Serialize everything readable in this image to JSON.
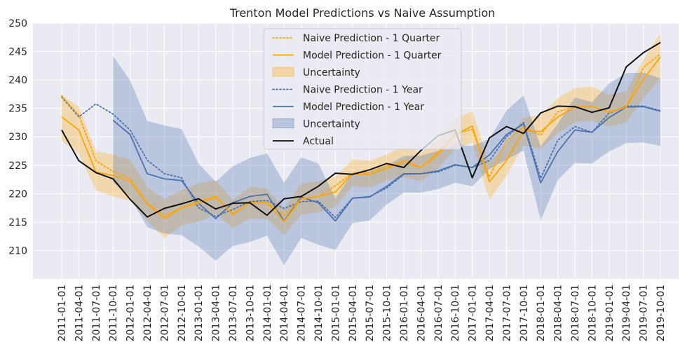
{
  "chart_data": {
    "type": "line",
    "title": "Trenton Model Predictions vs Naive Assumption",
    "xlabel": "",
    "ylabel": "",
    "ylim": [
      205,
      250
    ],
    "yticks": [
      210,
      215,
      220,
      225,
      230,
      235,
      240,
      245,
      250
    ],
    "grid": true,
    "legend_position": "top-center",
    "categories": [
      "2011-01-01",
      "2011-04-01",
      "2011-07-01",
      "2011-10-01",
      "2012-01-01",
      "2012-04-01",
      "2012-07-01",
      "2012-10-01",
      "2013-01-01",
      "2013-04-01",
      "2013-07-01",
      "2013-10-01",
      "2014-01-01",
      "2014-04-01",
      "2014-07-01",
      "2014-10-01",
      "2015-01-01",
      "2015-04-01",
      "2015-07-01",
      "2015-10-01",
      "2016-01-01",
      "2016-04-01",
      "2016-07-01",
      "2016-10-01",
      "2017-01-01",
      "2017-04-01",
      "2017-07-01",
      "2017-10-01",
      "2018-01-01",
      "2018-04-01",
      "2018-07-01",
      "2018-10-01",
      "2019-01-01",
      "2019-04-01",
      "2019-07-01",
      "2019-10-01"
    ],
    "series": [
      {
        "name": "Naive Prediction - 1 Quarter",
        "kind": "line",
        "style": "dotted",
        "color": "#FFA500",
        "values": [
          237.2,
          233.8,
          225.8,
          223.9,
          222.7,
          218.3,
          216.1,
          217.5,
          218.3,
          219.3,
          216.5,
          218.4,
          218.5,
          216.2,
          219.1,
          219.5,
          221.4,
          223.6,
          223.8,
          224.9,
          225.3,
          224.6,
          227.3,
          230.5,
          231.3,
          222.9,
          229.3,
          231.7,
          230.3,
          234.4,
          235.4,
          235.3,
          234.4,
          235.1,
          242.2,
          244.6
        ]
      },
      {
        "name": "Model Prediction - 1 Quarter",
        "kind": "line",
        "style": "solid",
        "color": "#FFA500",
        "values": [
          233.5,
          231.2,
          223.8,
          223.2,
          222.2,
          218.2,
          215.6,
          217.5,
          218.6,
          219.5,
          216.3,
          218.4,
          218.4,
          215.1,
          219.1,
          219.5,
          220.3,
          223.5,
          223.4,
          224.4,
          225.8,
          224.6,
          226.9,
          230.4,
          231.9,
          222.1,
          225.8,
          231.1,
          230.9,
          233.5,
          235.2,
          235.3,
          234.3,
          235.3,
          240.1,
          244.1
        ]
      },
      {
        "name": "Uncertainty",
        "kind": "band",
        "color": "#FFA500",
        "lower": [
          229.3,
          227.0,
          220.6,
          219.5,
          218.8,
          215.2,
          212.2,
          214.4,
          215.1,
          216.4,
          213.9,
          215.6,
          215.6,
          212.7,
          216.3,
          216.7,
          217.7,
          221.3,
          221.1,
          222.3,
          222.9,
          222.2,
          224.4,
          227.9,
          229.0,
          218.9,
          223.1,
          228.5,
          227.9,
          230.6,
          232.6,
          232.8,
          231.8,
          232.5,
          236.8,
          240.3
        ],
        "upper": [
          237.3,
          235.3,
          227.4,
          226.9,
          226.0,
          221.2,
          219.0,
          220.6,
          221.8,
          222.4,
          218.9,
          221.2,
          220.9,
          217.3,
          221.8,
          222.2,
          223.0,
          226.0,
          225.8,
          226.9,
          228.4,
          227.2,
          229.4,
          233.2,
          234.5,
          225.4,
          228.8,
          233.4,
          233.8,
          236.8,
          238.6,
          238.8,
          237.4,
          238.0,
          243.6,
          248.2
        ]
      },
      {
        "name": "Naive Prediction - 1 Year",
        "kind": "line",
        "style": "dotted",
        "color": "#4C72B0",
        "values": [
          237.0,
          233.5,
          235.8,
          234.0,
          231.2,
          225.9,
          223.5,
          222.8,
          217.5,
          216.0,
          217.2,
          218.6,
          218.8,
          217.4,
          218.6,
          218.7,
          215.8,
          219.2,
          219.5,
          221.0,
          223.4,
          223.5,
          223.8,
          225.0,
          224.6,
          225.8,
          230.0,
          232.5,
          222.7,
          229.4,
          231.8,
          230.8,
          234.2,
          235.4,
          235.4,
          234.6
        ]
      },
      {
        "name": "Model Prediction - 1 Year",
        "kind": "line",
        "style": "solid",
        "color": "#4C72B0",
        "values": [
          null,
          null,
          null,
          232.9,
          230.4,
          223.5,
          222.6,
          222.3,
          218.3,
          215.6,
          218.4,
          219.5,
          219.9,
          215.2,
          219.4,
          218.4,
          215.2,
          219.2,
          219.4,
          221.3,
          223.5,
          223.5,
          224.0,
          225.1,
          224.6,
          226.8,
          230.4,
          232.3,
          221.9,
          227.4,
          231.2,
          230.8,
          233.4,
          235.2,
          235.3,
          234.5
        ]
      },
      {
        "name": "Uncertainty",
        "kind": "band",
        "color": "#4C72B0",
        "lower": [
          null,
          null,
          null,
          222.0,
          219.5,
          214.1,
          213.0,
          212.7,
          210.7,
          208.2,
          210.8,
          211.5,
          212.6,
          207.4,
          212.2,
          211.0,
          210.1,
          214.8,
          215.3,
          218.1,
          220.2,
          220.2,
          220.8,
          221.9,
          221.3,
          224.3,
          226.0,
          227.6,
          215.3,
          222.4,
          225.4,
          225.3,
          227.4,
          228.9,
          229.0,
          228.4
        ],
        "upper": [
          null,
          null,
          null,
          244.2,
          239.9,
          232.8,
          232.0,
          231.4,
          225.3,
          222.1,
          224.8,
          226.3,
          227.1,
          221.9,
          226.4,
          225.3,
          219.2,
          223.6,
          223.9,
          225.0,
          226.6,
          226.7,
          227.5,
          228.6,
          228.4,
          229.6,
          234.6,
          237.3,
          228.3,
          232.3,
          236.9,
          236.1,
          239.4,
          241.2,
          241.3,
          240.3
        ]
      },
      {
        "name": "Actual",
        "kind": "line",
        "style": "solid",
        "color": "#111111",
        "values": [
          231.2,
          225.8,
          223.7,
          222.6,
          219.0,
          215.9,
          217.4,
          218.2,
          219.1,
          217.3,
          218.3,
          218.4,
          216.2,
          219.1,
          219.5,
          221.3,
          223.6,
          223.4,
          224.2,
          225.3,
          224.6,
          227.6,
          230.2,
          231.2,
          222.8,
          229.8,
          231.8,
          230.6,
          234.2,
          235.4,
          235.3,
          234.3,
          235.1,
          242.3,
          244.8,
          246.6
        ]
      }
    ]
  }
}
